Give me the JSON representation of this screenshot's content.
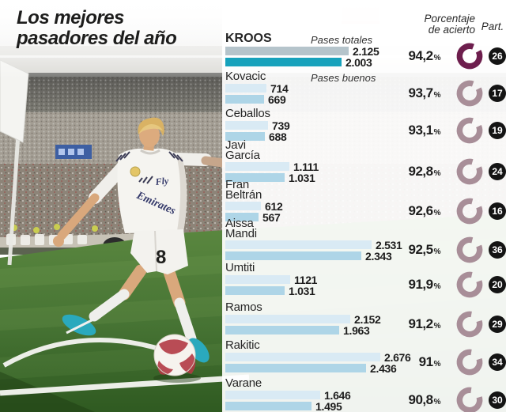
{
  "title": {
    "line1": "Los mejores",
    "line2": "pasadores del año"
  },
  "headers": {
    "pases_totales": "Pases totales",
    "pases_buenos": "Pases buenos",
    "porcentaje_line1": "Porcentaje",
    "porcentaje_line2": "de acierto",
    "part": "Part."
  },
  "labels": {
    "percent_sign": "%"
  },
  "colors": {
    "bar_light": "#d9eaf4",
    "bar_dark": "#aed5e7",
    "bar_hl_light": "#b5c4cb",
    "bar_hl_dark": "#17a2bc",
    "ring_highlight": "#6d1e4d",
    "ring_normal": "#a88e98",
    "badge_bg": "#141414",
    "badge_text": "#ffffff"
  },
  "photo": {
    "jersey_number": "8",
    "sponsor_line1": "Fly",
    "sponsor_line2": "Emirates"
  },
  "chart_data": {
    "type": "bar",
    "orientation": "horizontal",
    "title": "Los mejores pasadores del año",
    "series_labels": [
      "Pases totales",
      "Pases buenos"
    ],
    "legend_position": "inline-first-rows",
    "grid": false,
    "players": [
      {
        "line1": "KROOS",
        "line2": "",
        "total": 2125,
        "total_label": "2.125",
        "good": 2003,
        "good_label": "2.003",
        "pct": 94.2,
        "pct_label": "94,2",
        "part": "26",
        "highlight": true
      },
      {
        "line1": "Kovacic",
        "line2": "",
        "total": 714,
        "total_label": "714",
        "good": 669,
        "good_label": "669",
        "pct": 93.7,
        "pct_label": "93,7",
        "part": "17",
        "highlight": false
      },
      {
        "line1": "Ceballos",
        "line2": "",
        "total": 739,
        "total_label": "739",
        "good": 688,
        "good_label": "688",
        "pct": 93.1,
        "pct_label": "93,1",
        "part": "19",
        "highlight": false
      },
      {
        "line1": "Javi",
        "line2": "García",
        "total": 1111,
        "total_label": "1.111",
        "good": 1031,
        "good_label": "1.031",
        "pct": 92.8,
        "pct_label": "92,8",
        "part": "24",
        "highlight": false
      },
      {
        "line1": "Fran",
        "line2": "Beltrán",
        "total": 612,
        "total_label": "612",
        "good": 567,
        "good_label": "567",
        "pct": 92.6,
        "pct_label": "92,6",
        "part": "16",
        "highlight": false
      },
      {
        "line1": "Aissa",
        "line2": "Mandi",
        "total": 2531,
        "total_label": "2.531",
        "good": 2343,
        "good_label": "2.343",
        "pct": 92.5,
        "pct_label": "92,5",
        "part": "36",
        "highlight": false
      },
      {
        "line1": "Umtiti",
        "line2": "",
        "total": 1121,
        "total_label": "1121",
        "good": 1031,
        "good_label": "1.031",
        "pct": 91.9,
        "pct_label": "91,9",
        "part": "20",
        "highlight": false
      },
      {
        "line1": "Ramos",
        "line2": "",
        "total": 2152,
        "total_label": "2.152",
        "good": 1963,
        "good_label": "1.963",
        "pct": 91.2,
        "pct_label": "91,2",
        "part": "29",
        "highlight": false
      },
      {
        "line1": "Rakitic",
        "line2": "",
        "total": 2676,
        "total_label": "2.676",
        "good": 2436,
        "good_label": "2.436",
        "pct": 91.0,
        "pct_label": "91",
        "part": "34",
        "highlight": false
      },
      {
        "line1": "Varane",
        "line2": "",
        "total": 1646,
        "total_label": "1.646",
        "good": 1495,
        "good_label": "1.495",
        "pct": 90.8,
        "pct_label": "90,8",
        "part": "30",
        "highlight": false
      }
    ]
  }
}
